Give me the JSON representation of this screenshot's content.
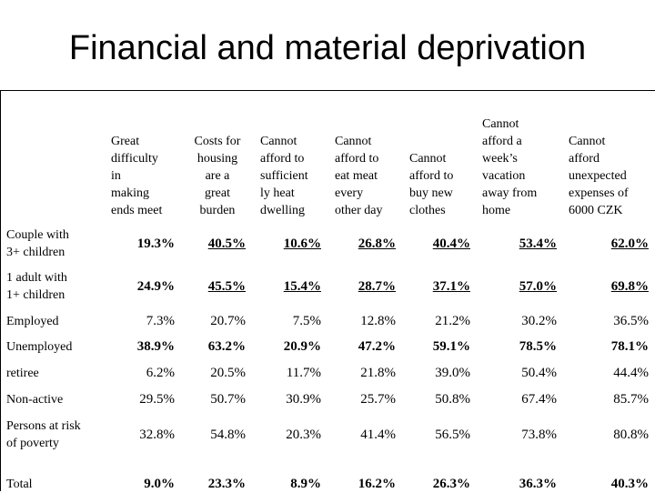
{
  "title": "Financial and material deprivation",
  "table": {
    "columns": [
      [
        "Great",
        "difficulty",
        "in",
        "making",
        "ends meet"
      ],
      [
        "Costs for",
        "housing",
        "are a",
        "great",
        "burden"
      ],
      [
        "Cannot",
        "afford to",
        "sufficient",
        "ly heat",
        "dwelling"
      ],
      [
        "Cannot",
        "afford to",
        "eat meat",
        "every",
        "other day"
      ],
      [
        "Cannot",
        "afford to",
        "buy new",
        "clothes"
      ],
      [
        "Cannot",
        "afford a",
        "week’s",
        "vacation",
        "away from",
        "home"
      ],
      [
        "Cannot",
        "afford",
        "unexpected",
        "expenses of",
        "6000 CZK"
      ]
    ],
    "rows": [
      {
        "label": [
          "Couple with",
          "3+ children"
        ],
        "values": [
          "19.3%",
          "40.5%",
          "10.6%",
          "26.8%",
          "40.4%",
          "53.4%",
          "62.0%"
        ],
        "style": "bold-underline"
      },
      {
        "label": [
          "1 adult with",
          "1+ children"
        ],
        "values": [
          "24.9%",
          "45.5%",
          "15.4%",
          "28.7%",
          "37.1%",
          "57.0%",
          "69.8%"
        ],
        "style": "bold-underline"
      },
      {
        "label": [
          "Employed"
        ],
        "values": [
          "7.3%",
          "20.7%",
          "7.5%",
          "12.8%",
          "21.2%",
          "30.2%",
          "36.5%"
        ],
        "style": "normal"
      },
      {
        "label": [
          "Unemployed"
        ],
        "values": [
          "38.9%",
          "63.2%",
          "20.9%",
          "47.2%",
          "59.1%",
          "78.5%",
          "78.1%"
        ],
        "style": "bold"
      },
      {
        "label": [
          "retiree"
        ],
        "values": [
          "6.2%",
          "20.5%",
          "11.7%",
          "21.8%",
          "39.0%",
          "50.4%",
          "44.4%"
        ],
        "style": "normal"
      },
      {
        "label": [
          "Non-active"
        ],
        "values": [
          "29.5%",
          "50.7%",
          "30.9%",
          "25.7%",
          "50.8%",
          "67.4%",
          "85.7%"
        ],
        "style": "normal"
      },
      {
        "label": [
          "Persons at risk",
          "of poverty"
        ],
        "values": [
          "32.8%",
          "54.8%",
          "20.3%",
          "41.4%",
          "56.5%",
          "73.8%",
          "80.8%"
        ],
        "style": "normal"
      },
      {
        "label": [
          "Total"
        ],
        "values": [
          "9.0%",
          "23.3%",
          "8.9%",
          "16.2%",
          "26.3%",
          "36.3%",
          "40.3%"
        ],
        "style": "bold"
      }
    ]
  }
}
